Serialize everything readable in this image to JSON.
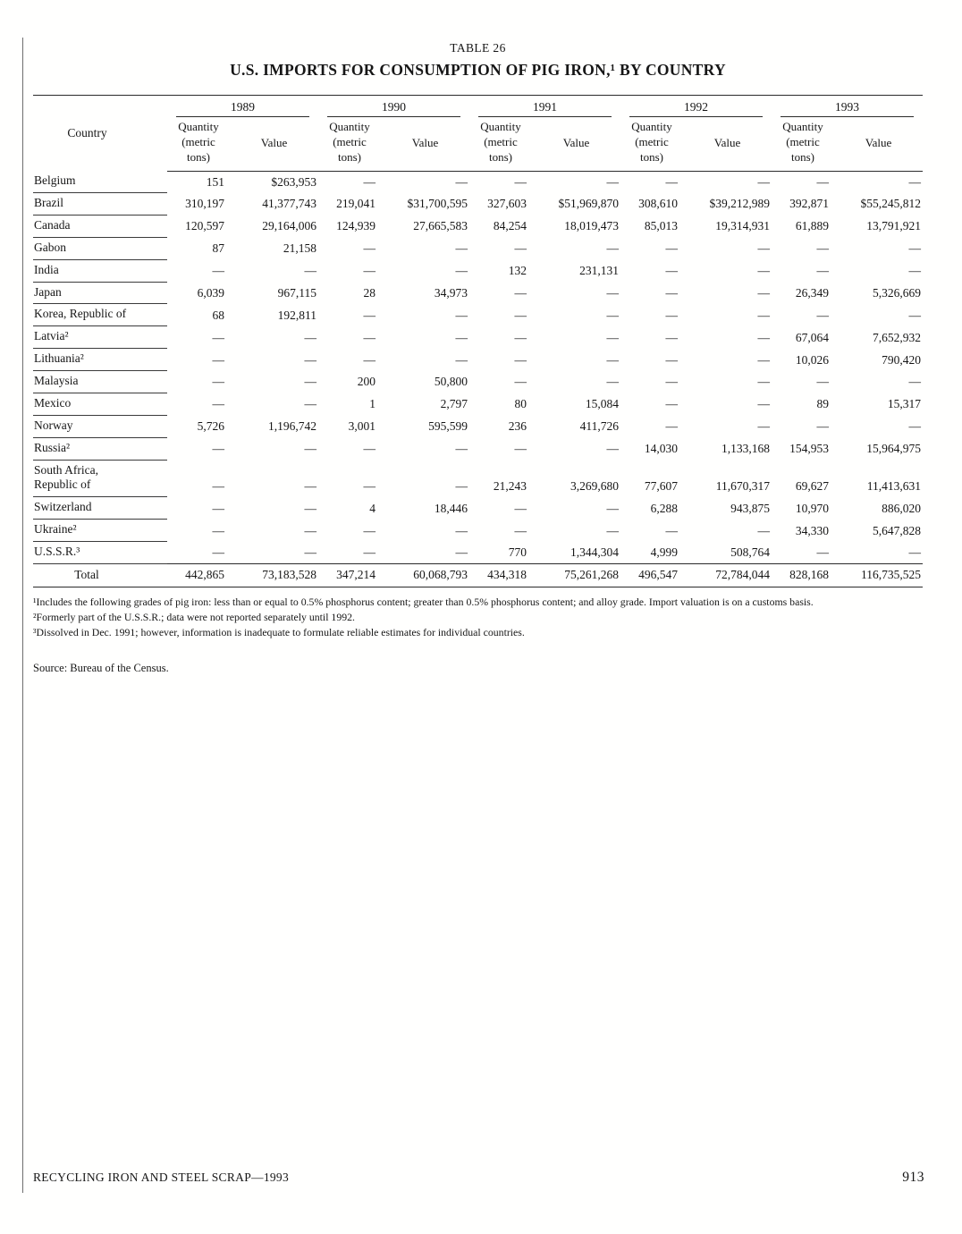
{
  "header": {
    "table_label": "TABLE 26",
    "title": "U.S. IMPORTS FOR CONSUMPTION OF PIG IRON,¹ BY COUNTRY"
  },
  "table": {
    "country_header": "Country",
    "quantity_header": "Quantity\n(metric\ntons)",
    "value_header": "Value",
    "years": [
      "1989",
      "1990",
      "1991",
      "1992",
      "1993"
    ],
    "rows": [
      {
        "country": "Belgium",
        "values": [
          "151",
          "$263,953",
          "—",
          "—",
          "—",
          "—",
          "—",
          "—",
          "—",
          "—"
        ]
      },
      {
        "country": "Brazil",
        "values": [
          "310,197",
          "41,377,743",
          "219,041",
          "$31,700,595",
          "327,603",
          "$51,969,870",
          "308,610",
          "$39,212,989",
          "392,871",
          "$55,245,812"
        ]
      },
      {
        "country": "Canada",
        "values": [
          "120,597",
          "29,164,006",
          "124,939",
          "27,665,583",
          "84,254",
          "18,019,473",
          "85,013",
          "19,314,931",
          "61,889",
          "13,791,921"
        ]
      },
      {
        "country": "Gabon",
        "values": [
          "87",
          "21,158",
          "—",
          "—",
          "—",
          "—",
          "—",
          "—",
          "—",
          "—"
        ]
      },
      {
        "country": "India",
        "values": [
          "—",
          "—",
          "—",
          "—",
          "132",
          "231,131",
          "—",
          "—",
          "—",
          "—"
        ]
      },
      {
        "country": "Japan",
        "values": [
          "6,039",
          "967,115",
          "28",
          "34,973",
          "—",
          "—",
          "—",
          "—",
          "26,349",
          "5,326,669"
        ]
      },
      {
        "country": "Korea, Republic of",
        "values": [
          "68",
          "192,811",
          "—",
          "—",
          "—",
          "—",
          "—",
          "—",
          "—",
          "—"
        ]
      },
      {
        "country": "Latvia²",
        "values": [
          "—",
          "—",
          "—",
          "—",
          "—",
          "—",
          "—",
          "—",
          "67,064",
          "7,652,932"
        ]
      },
      {
        "country": "Lithuania²",
        "values": [
          "—",
          "—",
          "—",
          "—",
          "—",
          "—",
          "—",
          "—",
          "10,026",
          "790,420"
        ]
      },
      {
        "country": "Malaysia",
        "values": [
          "—",
          "—",
          "200",
          "50,800",
          "—",
          "—",
          "—",
          "—",
          "—",
          "—"
        ]
      },
      {
        "country": "Mexico",
        "values": [
          "—",
          "—",
          "1",
          "2,797",
          "80",
          "15,084",
          "—",
          "—",
          "89",
          "15,317"
        ]
      },
      {
        "country": "Norway",
        "values": [
          "5,726",
          "1,196,742",
          "3,001",
          "595,599",
          "236",
          "411,726",
          "—",
          "—",
          "—",
          "—"
        ]
      },
      {
        "country": "Russia²",
        "values": [
          "—",
          "—",
          "—",
          "—",
          "—",
          "—",
          "14,030",
          "1,133,168",
          "154,953",
          "15,964,975"
        ]
      },
      {
        "country": "South Africa,\nRepublic of",
        "values": [
          "—",
          "—",
          "—",
          "—",
          "21,243",
          "3,269,680",
          "77,607",
          "11,670,317",
          "69,627",
          "11,413,631"
        ]
      },
      {
        "country": "Switzerland",
        "values": [
          "—",
          "—",
          "4",
          "18,446",
          "—",
          "—",
          "6,288",
          "943,875",
          "10,970",
          "886,020"
        ]
      },
      {
        "country": "Ukraine²",
        "values": [
          "—",
          "—",
          "—",
          "—",
          "—",
          "—",
          "—",
          "—",
          "34,330",
          "5,647,828"
        ]
      },
      {
        "country": "U.S.S.R.³",
        "values": [
          "—",
          "—",
          "—",
          "—",
          "770",
          "1,344,304",
          "4,999",
          "508,764",
          "—",
          "—"
        ]
      }
    ],
    "total": {
      "label": "Total",
      "values": [
        "442,865",
        "73,183,528",
        "347,214",
        "60,068,793",
        "434,318",
        "75,261,268",
        "496,547",
        "72,784,044",
        "828,168",
        "116,735,525"
      ]
    }
  },
  "footnotes": [
    "¹Includes the following grades of pig iron:  less than or equal to 0.5% phosphorus content; greater than 0.5% phosphorus content; and alloy grade.  Import valuation is on a customs basis.",
    "²Formerly part of the U.S.S.R.; data were not reported separately until 1992.",
    "³Dissolved in Dec. 1991; however, information is inadequate to formulate reliable estimates for individual countries."
  ],
  "source": "Source:  Bureau of the Census.",
  "footer": {
    "left": "RECYCLING IRON AND STEEL SCRAP—1993",
    "page_number": "913"
  }
}
